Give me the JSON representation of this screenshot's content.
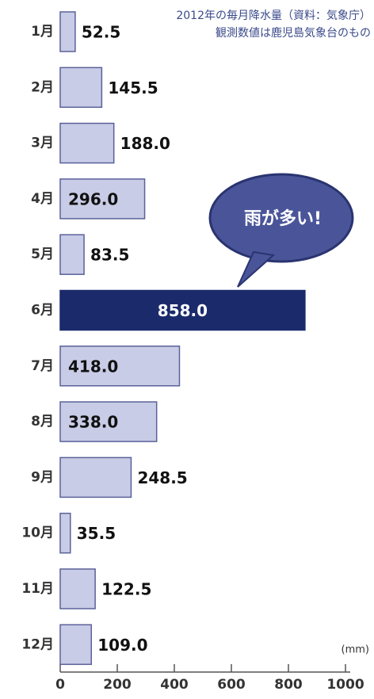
{
  "chart_data": {
    "type": "bar",
    "orientation": "horizontal",
    "annotations": [
      "2012年の毎月降水量（資料：気象庁）",
      "観測数値は鹿児島気象台のもの"
    ],
    "callout": "雨が多い!",
    "unit_label": "(mm)",
    "categories": [
      "1月",
      "2月",
      "3月",
      "4月",
      "5月",
      "6月",
      "7月",
      "8月",
      "9月",
      "10月",
      "11月",
      "12月"
    ],
    "values": [
      52.5,
      145.5,
      188,
      296,
      83.5,
      858,
      418,
      338,
      248.5,
      35.5,
      122.5,
      109
    ],
    "value_labels": [
      "52.5",
      "145.5",
      "188.0",
      "296.0",
      "83.5",
      "858.0",
      "418.0",
      "338.0",
      "248.5",
      "35.5",
      "122.5",
      "109.0"
    ],
    "colors": [
      "#c9cce6",
      "#c9cce6",
      "#c9cce6",
      "#c9cce6",
      "#c9cce6",
      "#1b2a6b",
      "#c9cce6",
      "#c9cce6",
      "#c9cce6",
      "#c9cce6",
      "#c9cce6",
      "#c9cce6"
    ],
    "xlim": [
      0,
      1000
    ],
    "xticks": [
      0,
      200,
      400,
      600,
      800,
      1000
    ]
  }
}
